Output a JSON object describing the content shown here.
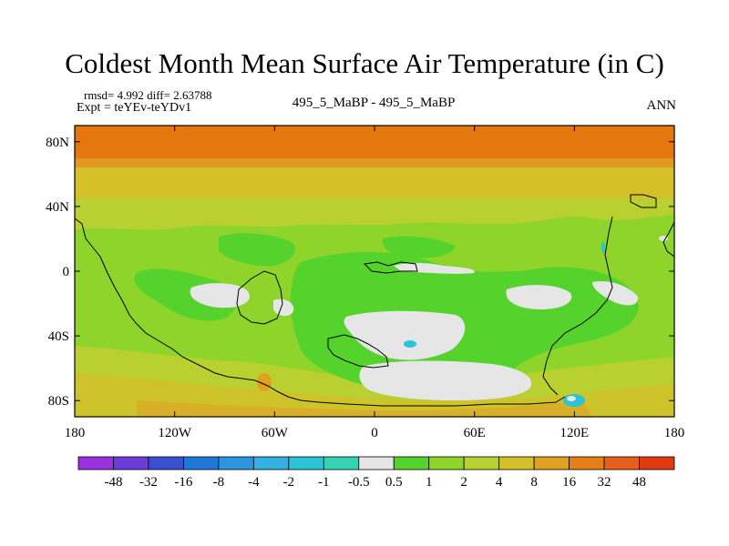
{
  "header": {
    "title": "Coldest Month Mean Surface Air Temperature (in C)",
    "rmsd_line": "rmsd= 4.992 diff= 2.63788",
    "expt_line": "Expt = teYEv-teYDv1",
    "center_label": "495_5_MaBP - 495_5_MaBP",
    "season": "ANN"
  },
  "chart_data": {
    "type": "heatmap",
    "title": "Coldest Month Mean Surface Air Temperature (in C)",
    "projection": "cylindrical-equidistant",
    "xlim": [
      -180,
      180
    ],
    "ylim": [
      -90,
      90
    ],
    "x_ticks": [
      {
        "value": -180,
        "label": "180"
      },
      {
        "value": -120,
        "label": "120W"
      },
      {
        "value": -60,
        "label": "60W"
      },
      {
        "value": 0,
        "label": "0"
      },
      {
        "value": 60,
        "label": "60E"
      },
      {
        "value": 120,
        "label": "120E"
      },
      {
        "value": 180,
        "label": "180"
      }
    ],
    "y_ticks": [
      {
        "value": 80,
        "label": "80N"
      },
      {
        "value": 40,
        "label": "40N"
      },
      {
        "value": 0,
        "label": "0"
      },
      {
        "value": -40,
        "label": "40S"
      },
      {
        "value": -80,
        "label": "80S"
      }
    ],
    "colorbar": {
      "labels": [
        "-48",
        "-32",
        "-16",
        "-8",
        "-4",
        "-2",
        "-1",
        "-0.5",
        "0.5",
        "1",
        "2",
        "4",
        "8",
        "16",
        "32",
        "48"
      ],
      "colors": [
        "#9b30e0",
        "#6a3cd8",
        "#3a4fd0",
        "#1f78d8",
        "#2c95e0",
        "#33b0e2",
        "#2ac4d6",
        "#35d2b4",
        "#e6e6e6",
        "#55d22c",
        "#8ed42a",
        "#b8d030",
        "#d4c028",
        "#e0a020",
        "#e67f15",
        "#e6601a",
        "#e03a10"
      ]
    },
    "regions": [
      {
        "name": "arctic-band",
        "lat": [
          60,
          90
        ],
        "lon": [
          -180,
          180
        ],
        "value": "16 to 32"
      },
      {
        "name": "north-midlat-band",
        "lat": [
          45,
          60
        ],
        "lon": [
          -180,
          180
        ],
        "value": "8 to 16"
      },
      {
        "name": "northern-subtropics",
        "lat": [
          15,
          45
        ],
        "lon": [
          -180,
          180
        ],
        "value": "2 to 4"
      },
      {
        "name": "tropics",
        "lat": [
          -50,
          15
        ],
        "lon": [
          -180,
          180
        ],
        "value": "1 to 2"
      },
      {
        "name": "southern-band",
        "lat": [
          -90,
          -55
        ],
        "lon": [
          -180,
          180
        ],
        "value": "4 to 8"
      },
      {
        "name": "near-zero-patches",
        "value": "-0.5 to 0.5"
      },
      {
        "name": "cold-spots",
        "value": "-4 to -0.5"
      }
    ]
  }
}
